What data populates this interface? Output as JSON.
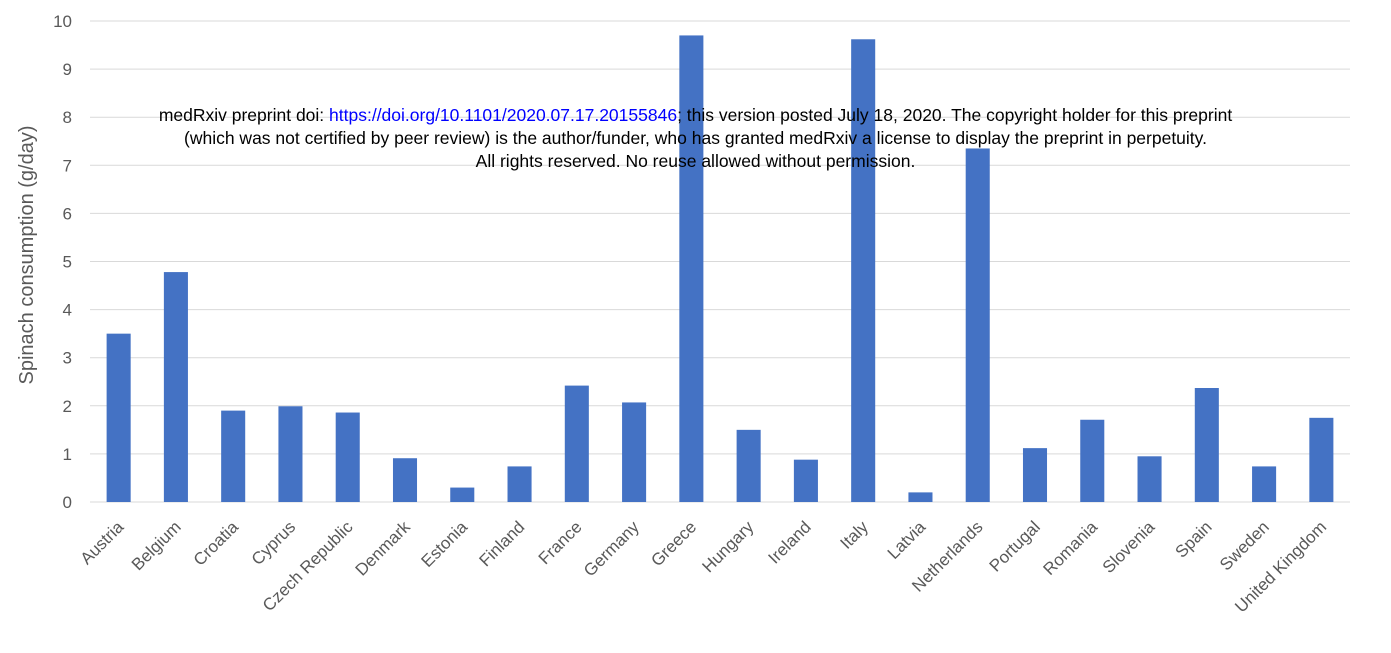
{
  "chart_data": {
    "type": "bar",
    "title": "",
    "xlabel": "",
    "ylabel": "Spinach consumption (g/day)",
    "ylim": [
      0,
      10
    ],
    "yticks": [
      0,
      1,
      2,
      3,
      4,
      5,
      6,
      7,
      8,
      9,
      10
    ],
    "grid": true,
    "legend": "none",
    "bar_color": "#4472c4",
    "categories": [
      "Austria",
      "Belgium",
      "Croatia",
      "Cyprus",
      "Czech Republic",
      "Denmark",
      "Estonia",
      "Finland",
      "France",
      "Germany",
      "Greece",
      "Hungary",
      "Ireland",
      "Italy",
      "Latvia",
      "Netherlands",
      "Portugal",
      "Romania",
      "Slovenia",
      "Spain",
      "Sweden",
      "United Kingdom"
    ],
    "values": [
      3.5,
      4.78,
      1.9,
      1.99,
      1.86,
      0.91,
      0.3,
      0.74,
      2.42,
      2.07,
      9.7,
      1.5,
      0.88,
      9.62,
      0.2,
      7.35,
      1.12,
      1.71,
      0.95,
      2.37,
      0.74,
      1.75
    ]
  },
  "notice": {
    "line1_prefix": "medRxiv preprint doi: ",
    "line1_link": "https://doi.org/10.1101/2020.07.17.20155846",
    "line1_suffix": "; this version posted July 18, 2020. The copyright holder for this preprint",
    "line2": "(which was not certified by peer review) is the author/funder, who has granted medRxiv a license to display the preprint in perpetuity.",
    "line3": "All rights reserved. No reuse allowed without permission."
  }
}
